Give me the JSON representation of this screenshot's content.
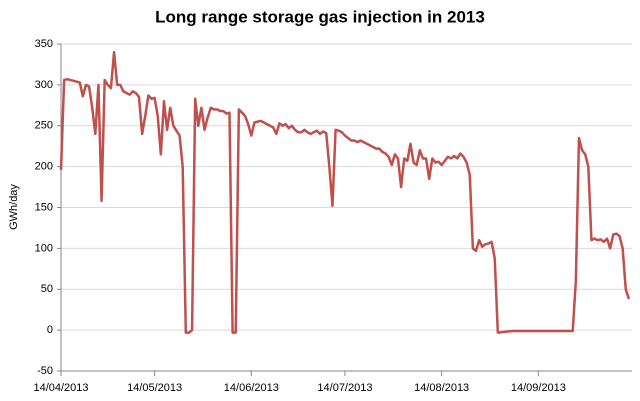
{
  "chart_data": {
    "type": "line",
    "title": "Long range storage gas injection in 2013",
    "y_label": "GWh/day",
    "x": [
      "14/04/2013",
      "15/04/2013",
      "16/04/2013",
      "18/04/2013",
      "20/04/2013",
      "21/04/2013",
      "22/04/2013",
      "23/04/2013",
      "24/04/2013",
      "25/04/2013",
      "26/04/2013",
      "27/04/2013",
      "28/04/2013",
      "29/04/2013",
      "30/04/2013",
      "01/05/2013",
      "02/05/2013",
      "03/05/2013",
      "04/05/2013",
      "05/05/2013",
      "06/05/2013",
      "07/05/2013",
      "08/05/2013",
      "09/05/2013",
      "10/05/2013",
      "11/05/2013",
      "12/05/2013",
      "13/05/2013",
      "14/05/2013",
      "15/05/2013",
      "16/05/2013",
      "17/05/2013",
      "18/05/2013",
      "19/05/2013",
      "20/05/2013",
      "21/05/2013",
      "22/05/2013",
      "23/05/2013",
      "24/05/2013",
      "25/05/2013",
      "26/05/2013",
      "27/05/2013",
      "28/05/2013",
      "29/05/2013",
      "30/05/2013",
      "31/05/2013",
      "01/06/2013",
      "02/06/2013",
      "03/06/2013",
      "04/06/2013",
      "05/06/2013",
      "06/06/2013",
      "07/06/2013",
      "08/06/2013",
      "09/06/2013",
      "10/06/2013",
      "11/06/2013",
      "12/06/2013",
      "13/06/2013",
      "14/06/2013",
      "15/06/2013",
      "16/06/2013",
      "17/06/2013",
      "18/06/2013",
      "19/06/2013",
      "20/06/2013",
      "21/06/2013",
      "22/06/2013",
      "23/06/2013",
      "24/06/2013",
      "25/06/2013",
      "26/06/2013",
      "27/06/2013",
      "28/06/2013",
      "29/06/2013",
      "30/06/2013",
      "01/07/2013",
      "02/07/2013",
      "03/07/2013",
      "04/07/2013",
      "05/07/2013",
      "06/07/2013",
      "07/07/2013",
      "08/07/2013",
      "09/07/2013",
      "10/07/2013",
      "11/07/2013",
      "12/07/2013",
      "13/07/2013",
      "14/07/2013",
      "15/07/2013",
      "16/07/2013",
      "17/07/2013",
      "18/07/2013",
      "19/07/2013",
      "20/07/2013",
      "21/07/2013",
      "22/07/2013",
      "23/07/2013",
      "24/07/2013",
      "25/07/2013",
      "26/07/2013",
      "27/07/2013",
      "28/07/2013",
      "29/07/2013",
      "30/07/2013",
      "31/07/2013",
      "01/08/2013",
      "02/08/2013",
      "03/08/2013",
      "04/08/2013",
      "05/08/2013",
      "06/08/2013",
      "07/08/2013",
      "08/08/2013",
      "09/08/2013",
      "10/08/2013",
      "11/08/2013",
      "12/08/2013",
      "13/08/2013",
      "14/08/2013",
      "15/08/2013",
      "16/08/2013",
      "17/08/2013",
      "18/08/2013",
      "19/08/2013",
      "20/08/2013",
      "21/08/2013",
      "22/08/2013",
      "23/08/2013",
      "24/08/2013",
      "25/08/2013",
      "26/08/2013",
      "27/08/2013",
      "28/08/2013",
      "29/08/2013",
      "30/08/2013",
      "31/08/2013",
      "01/09/2013",
      "06/09/2013",
      "11/09/2013",
      "16/09/2013",
      "21/09/2013",
      "25/09/2013",
      "26/09/2013",
      "27/09/2013",
      "28/09/2013",
      "29/09/2013",
      "30/09/2013",
      "01/10/2013",
      "02/10/2013",
      "03/10/2013",
      "04/10/2013",
      "05/10/2013",
      "06/10/2013",
      "07/10/2013",
      "08/10/2013",
      "09/10/2013",
      "10/10/2013",
      "11/10/2013",
      "12/10/2013",
      "13/10/2013"
    ],
    "series": [
      {
        "name": "Long range storage gas injection",
        "color": "#c0504d",
        "values": [
          196,
          306,
          307,
          305,
          303,
          286,
          300,
          298,
          272,
          240,
          300,
          158,
          306,
          300,
          296,
          340,
          300,
          300,
          292,
          290,
          288,
          292,
          290,
          285,
          240,
          262,
          287,
          283,
          284,
          262,
          215,
          280,
          245,
          272,
          250,
          244,
          238,
          200,
          -3,
          -3,
          0,
          283,
          250,
          272,
          245,
          260,
          272,
          270,
          270,
          268,
          268,
          265,
          266,
          -3,
          -3,
          270,
          266,
          262,
          252,
          238,
          254,
          255,
          256,
          254,
          252,
          250,
          248,
          240,
          253,
          250,
          252,
          247,
          250,
          245,
          242,
          242,
          245,
          242,
          240,
          242,
          244,
          240,
          243,
          241,
          200,
          152,
          245,
          244,
          242,
          238,
          235,
          232,
          232,
          230,
          232,
          230,
          228,
          226,
          224,
          222,
          222,
          218,
          216,
          212,
          202,
          215,
          210,
          175,
          210,
          207,
          228,
          205,
          202,
          220,
          210,
          210,
          185,
          210,
          205,
          206,
          202,
          207,
          212,
          210,
          213,
          210,
          216,
          212,
          205,
          190,
          100,
          97,
          110,
          102,
          105,
          106,
          108,
          88,
          -3,
          -1,
          -1,
          -1,
          -1,
          -1,
          60,
          235,
          220,
          215,
          200,
          110,
          112,
          110,
          111,
          108,
          112,
          100,
          117,
          118,
          115,
          100,
          50,
          38
        ]
      }
    ],
    "xlim": [
      "14/04/2013",
      "14/10/2013"
    ],
    "xticks": [
      "14/04/2013",
      "14/05/2013",
      "14/06/2013",
      "14/07/2013",
      "14/08/2013",
      "14/09/2013"
    ],
    "ylim": [
      -50,
      350
    ],
    "yticks": [
      -50,
      0,
      50,
      100,
      150,
      200,
      250,
      300,
      350
    ],
    "grid": true
  }
}
